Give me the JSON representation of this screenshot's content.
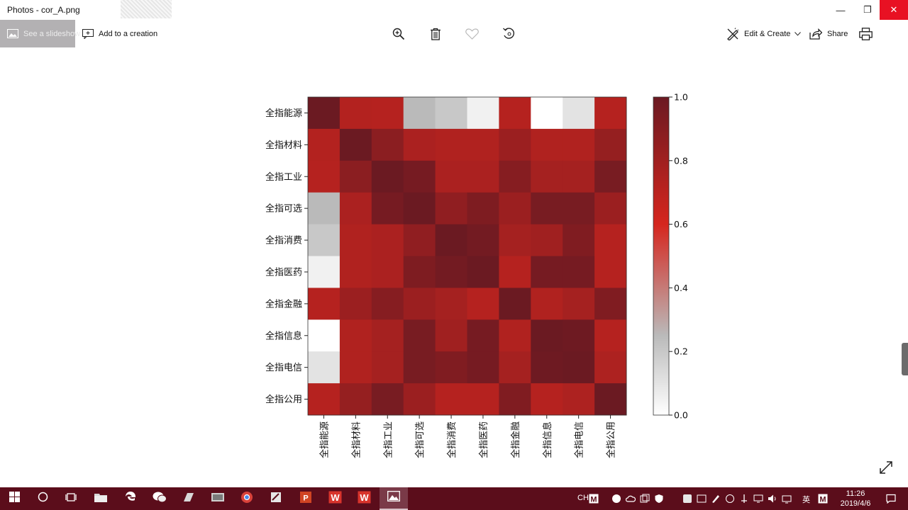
{
  "window": {
    "title": "Photos - cor_A.png",
    "minimize_glyph": "—",
    "maximize_glyph": "❐",
    "close_glyph": "✕"
  },
  "toolbar": {
    "slideshow_label": "See a slideshow",
    "add_creation_label": "Add to a creation",
    "edit_create_label": "Edit & Create",
    "share_label": "Share",
    "icons": [
      "zoom-in-icon",
      "delete-icon",
      "favorite-icon",
      "rotate-icon",
      "print-icon",
      "more-icon"
    ]
  },
  "chart_data": {
    "type": "heatmap",
    "title": "",
    "categories": [
      "全指能源",
      "全指材料",
      "全指工业",
      "全指可选",
      "全指消费",
      "全指医药",
      "全指金融",
      "全指信息",
      "全指电信",
      "全指公用"
    ],
    "values": [
      [
        1.0,
        0.73,
        0.72,
        0.25,
        0.2,
        0.05,
        0.72,
        0.0,
        0.1,
        0.72
      ],
      [
        0.73,
        1.0,
        0.88,
        0.76,
        0.74,
        0.74,
        0.82,
        0.74,
        0.74,
        0.84
      ],
      [
        0.72,
        0.88,
        1.0,
        0.96,
        0.76,
        0.76,
        0.9,
        0.78,
        0.78,
        0.95
      ],
      [
        0.25,
        0.76,
        0.96,
        1.0,
        0.86,
        0.93,
        0.82,
        0.95,
        0.95,
        0.82
      ],
      [
        0.2,
        0.74,
        0.76,
        0.86,
        1.0,
        0.97,
        0.78,
        0.8,
        0.92,
        0.72
      ],
      [
        0.05,
        0.74,
        0.76,
        0.93,
        0.97,
        1.0,
        0.72,
        0.96,
        0.96,
        0.72
      ],
      [
        0.72,
        0.82,
        0.9,
        0.82,
        0.78,
        0.72,
        1.0,
        0.74,
        0.78,
        0.92
      ],
      [
        0.0,
        0.74,
        0.78,
        0.95,
        0.8,
        0.96,
        0.74,
        1.0,
        0.99,
        0.72
      ],
      [
        0.1,
        0.74,
        0.78,
        0.95,
        0.92,
        0.96,
        0.78,
        0.99,
        1.0,
        0.75
      ],
      [
        0.72,
        0.84,
        0.95,
        0.82,
        0.72,
        0.72,
        0.92,
        0.72,
        0.75,
        1.0
      ]
    ],
    "colorbar": {
      "range": [
        0.0,
        1.0
      ],
      "ticks": [
        "0.0",
        "0.2",
        "0.4",
        "0.6",
        "0.8",
        "1.0"
      ],
      "colors": [
        "#ffffff",
        "#bababa",
        "#d5261e",
        "#6b1a22"
      ]
    }
  },
  "taskbar": {
    "apps": [
      "windows-icon",
      "cortana-icon",
      "task-view-icon",
      "file-explorer-icon",
      "edge-icon",
      "wechat-icon",
      "app-icon",
      "app-icon",
      "chrome-icon",
      "app-icon",
      "powerpoint-icon",
      "wps-icon",
      "wps-icon",
      "photos-icon"
    ],
    "tray_text_ch": "CH",
    "tray_text_ime": "英",
    "clock_time": "11:26",
    "clock_date": "2019/4/6"
  },
  "colors": {
    "taskbar_bg": "#5b0d1b",
    "close_red": "#e81123",
    "slideshow_bg": "#b3b1b3"
  }
}
